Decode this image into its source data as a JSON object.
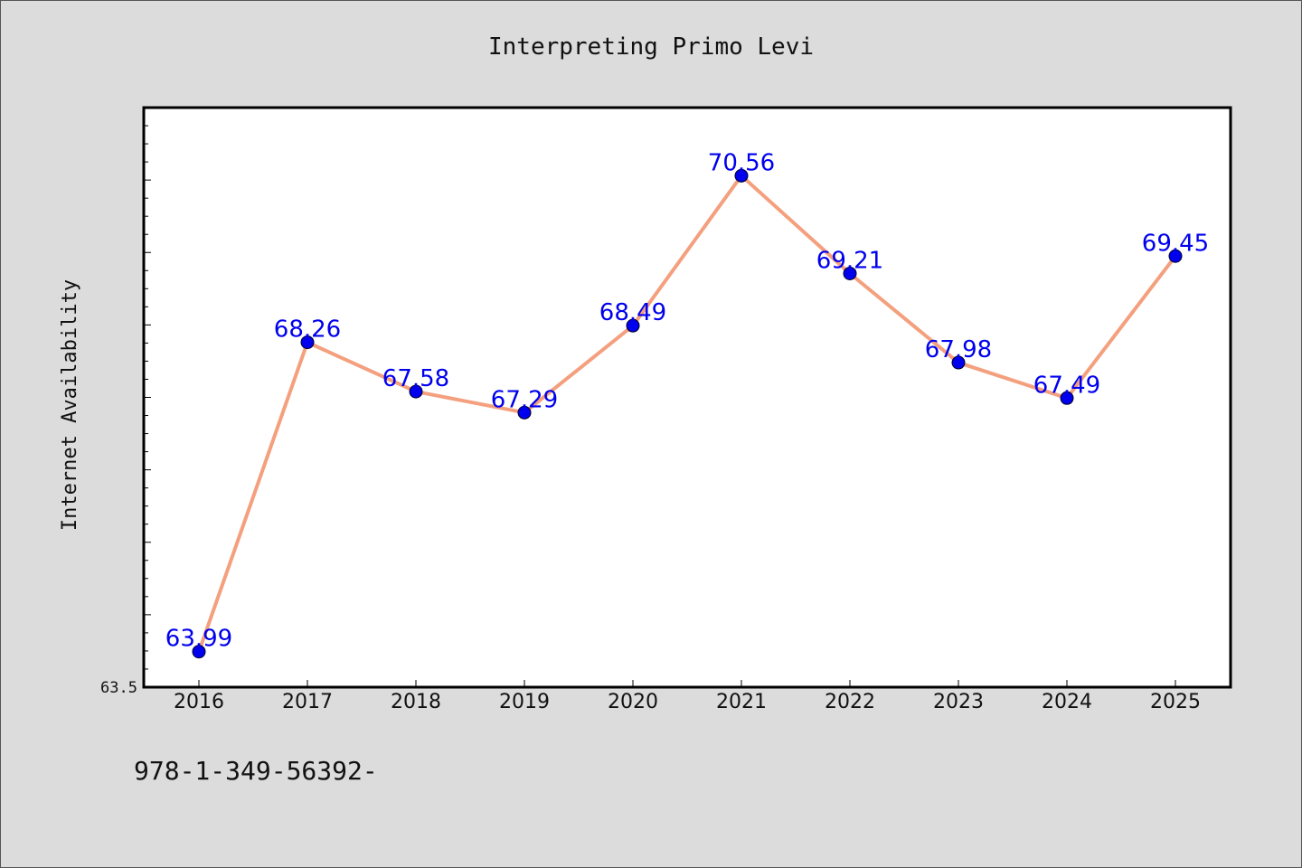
{
  "chart_data": {
    "type": "line",
    "title": "Interpreting Primo Levi",
    "xlabel": "",
    "ylabel": "Internet Availability",
    "categories": [
      "2016",
      "2017",
      "2018",
      "2019",
      "2020",
      "2021",
      "2022",
      "2023",
      "2024",
      "2025"
    ],
    "series": [
      {
        "values": [
          63.99,
          68.26,
          67.58,
          67.29,
          68.49,
          70.56,
          69.21,
          67.98,
          67.49,
          69.45
        ],
        "labels": [
          "63.99",
          "68.26",
          "67.58",
          "67.29",
          "68.49",
          "70.56",
          "69.21",
          "67.98",
          "67.49",
          "69.45"
        ]
      }
    ],
    "ylim": [
      63.5,
      71.5
    ],
    "ytick_labels": [
      "63.5"
    ],
    "grid": false,
    "line_color": "#f4a07e",
    "marker_color": "#0000ee",
    "label_color": "#0000ee"
  },
  "footer_text": "978-1-349-56392-"
}
